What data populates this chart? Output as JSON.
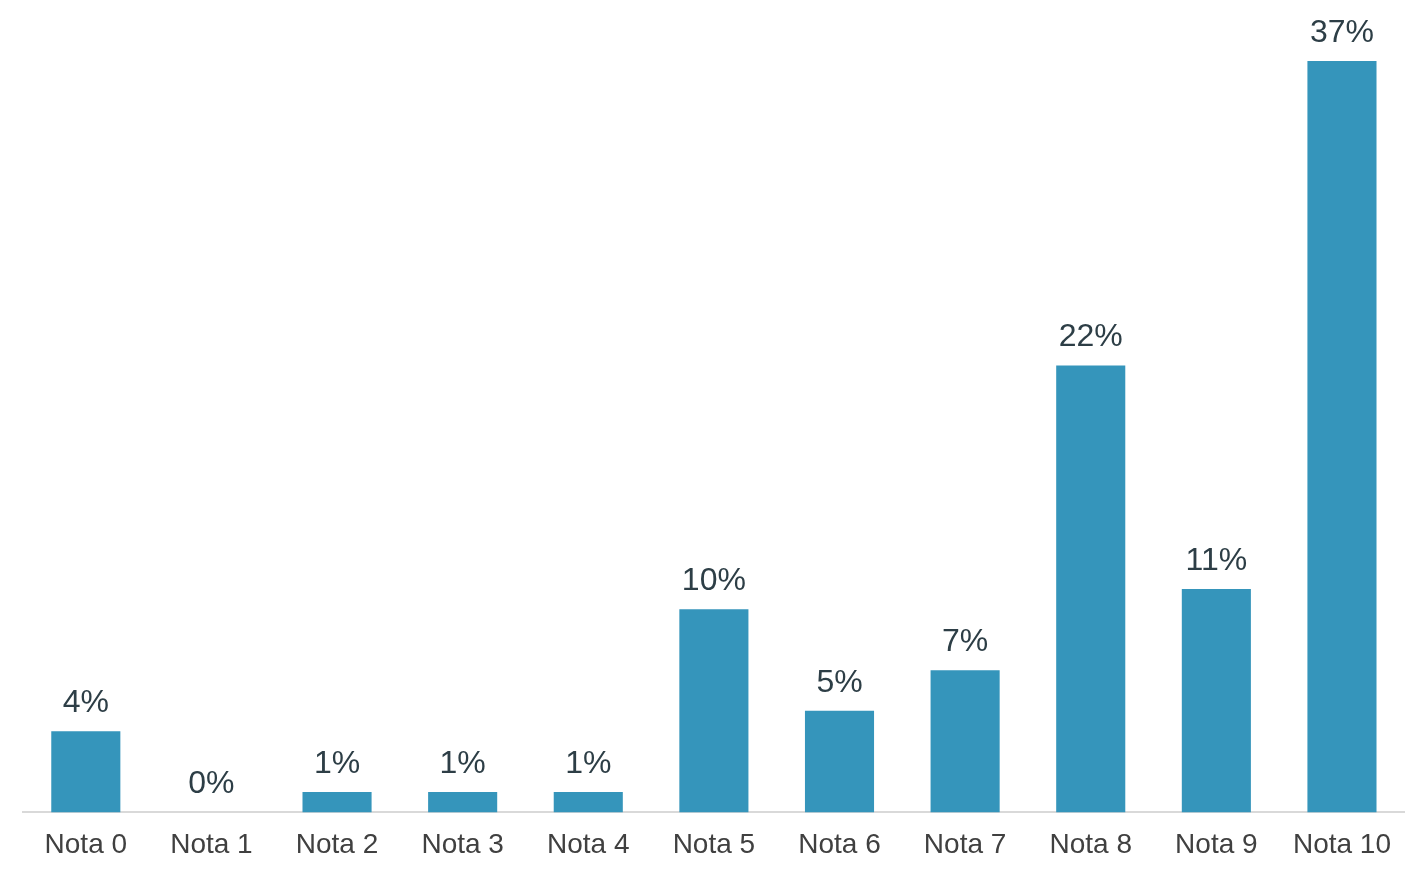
{
  "chart_data": {
    "type": "bar",
    "categories": [
      "Nota 0",
      "Nota 1",
      "Nota 2",
      "Nota 3",
      "Nota 4",
      "Nota 5",
      "Nota 6",
      "Nota 7",
      "Nota 8",
      "Nota 9",
      "Nota 10"
    ],
    "values": [
      4,
      0,
      1,
      1,
      1,
      10,
      5,
      7,
      22,
      11,
      37
    ],
    "value_labels": [
      "4%",
      "0%",
      "1%",
      "1%",
      "1%",
      "10%",
      "5%",
      "7%",
      "22%",
      "11%",
      "37%"
    ],
    "color": "#3595bb",
    "relative": false,
    "grid": false,
    "legend": false
  }
}
